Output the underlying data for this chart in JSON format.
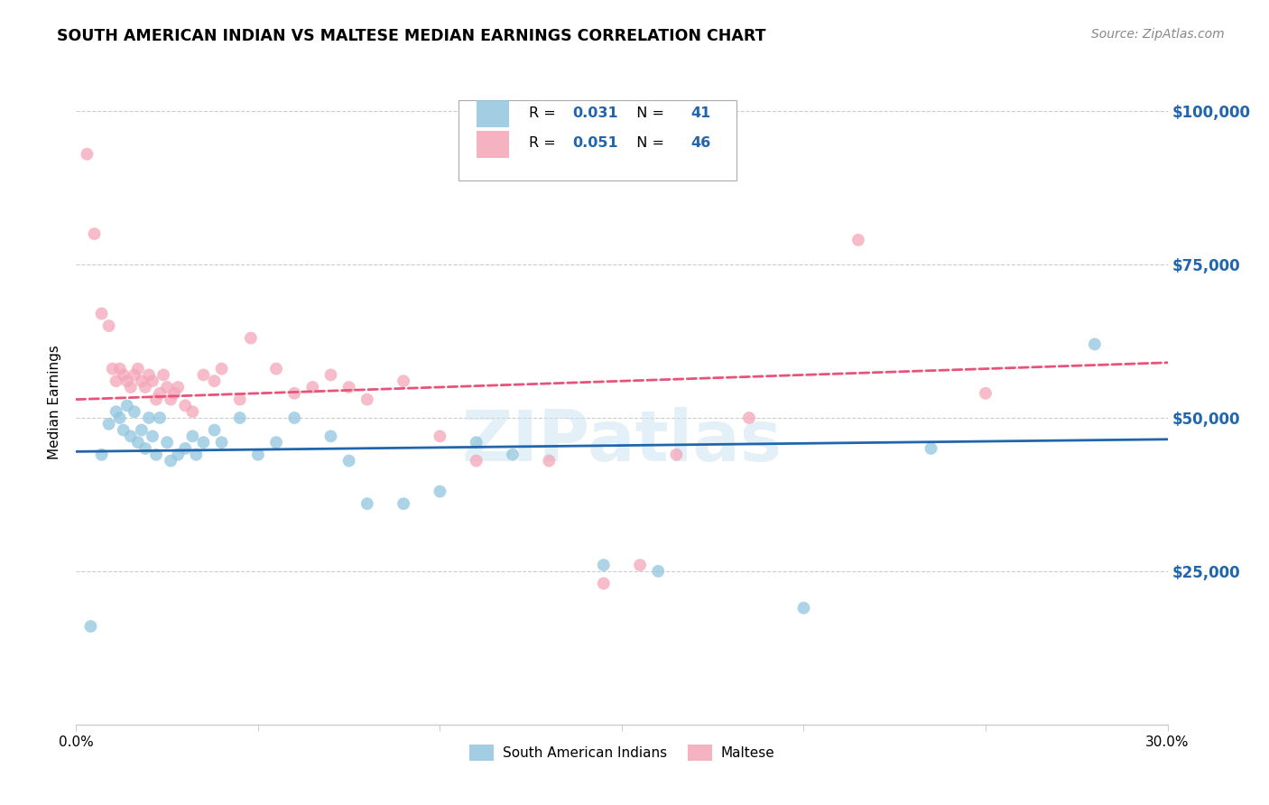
{
  "title": "SOUTH AMERICAN INDIAN VS MALTESE MEDIAN EARNINGS CORRELATION CHART",
  "source": "Source: ZipAtlas.com",
  "ylabel": "Median Earnings",
  "yticks": [
    0,
    25000,
    50000,
    75000,
    100000
  ],
  "ytick_labels": [
    "",
    "$25,000",
    "$50,000",
    "$75,000",
    "$100,000"
  ],
  "xlim": [
    0.0,
    0.3
  ],
  "ylim": [
    0,
    105000
  ],
  "legend_label1": "South American Indians",
  "legend_label2": "Maltese",
  "r1": "0.031",
  "n1": "41",
  "r2": "0.051",
  "n2": "46",
  "color_blue": "#92c5de",
  "color_pink": "#f4a6b8",
  "color_blue_line": "#2166ac",
  "color_pink_line": "#e8537a",
  "color_grid": "#cccccc",
  "watermark": "ZIPatlas",
  "blue_x": [
    0.004,
    0.007,
    0.009,
    0.011,
    0.012,
    0.013,
    0.014,
    0.015,
    0.016,
    0.017,
    0.018,
    0.019,
    0.02,
    0.021,
    0.022,
    0.023,
    0.025,
    0.026,
    0.028,
    0.03,
    0.032,
    0.033,
    0.035,
    0.038,
    0.04,
    0.045,
    0.05,
    0.055,
    0.06,
    0.07,
    0.075,
    0.08,
    0.09,
    0.1,
    0.11,
    0.12,
    0.145,
    0.16,
    0.2,
    0.235,
    0.28
  ],
  "blue_y": [
    16000,
    44000,
    49000,
    51000,
    50000,
    48000,
    52000,
    47000,
    51000,
    46000,
    48000,
    45000,
    50000,
    47000,
    44000,
    50000,
    46000,
    43000,
    44000,
    45000,
    47000,
    44000,
    46000,
    48000,
    46000,
    50000,
    44000,
    46000,
    50000,
    47000,
    43000,
    36000,
    36000,
    38000,
    46000,
    44000,
    26000,
    25000,
    19000,
    45000,
    62000
  ],
  "pink_x": [
    0.003,
    0.005,
    0.007,
    0.009,
    0.01,
    0.011,
    0.012,
    0.013,
    0.014,
    0.015,
    0.016,
    0.017,
    0.018,
    0.019,
    0.02,
    0.021,
    0.022,
    0.023,
    0.024,
    0.025,
    0.026,
    0.027,
    0.028,
    0.03,
    0.032,
    0.035,
    0.038,
    0.04,
    0.045,
    0.048,
    0.055,
    0.06,
    0.065,
    0.07,
    0.075,
    0.08,
    0.09,
    0.1,
    0.11,
    0.13,
    0.145,
    0.155,
    0.165,
    0.185,
    0.215,
    0.25
  ],
  "pink_y": [
    93000,
    80000,
    67000,
    65000,
    58000,
    56000,
    58000,
    57000,
    56000,
    55000,
    57000,
    58000,
    56000,
    55000,
    57000,
    56000,
    53000,
    54000,
    57000,
    55000,
    53000,
    54000,
    55000,
    52000,
    51000,
    57000,
    56000,
    58000,
    53000,
    63000,
    58000,
    54000,
    55000,
    57000,
    55000,
    53000,
    56000,
    47000,
    43000,
    43000,
    23000,
    26000,
    44000,
    50000,
    79000,
    54000
  ]
}
